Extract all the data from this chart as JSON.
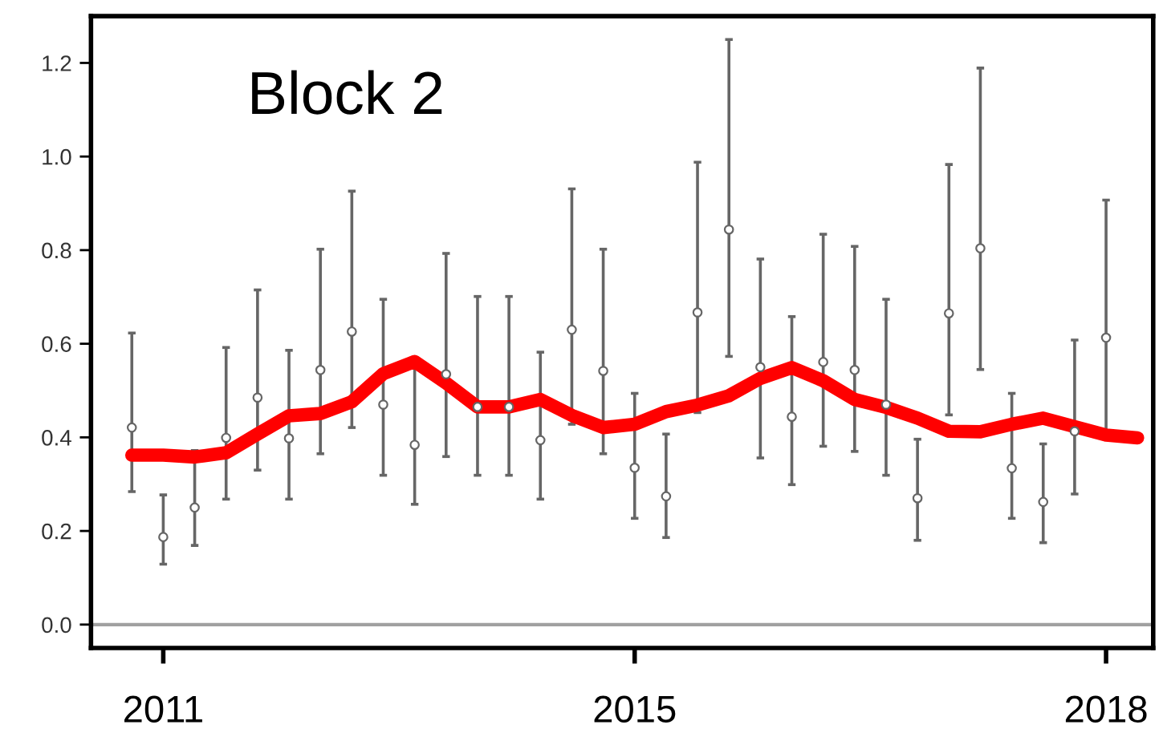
{
  "chart_data": {
    "type": "scatter",
    "title": "Block 2",
    "categories": [
      null,
      "2011",
      null,
      null,
      null,
      null,
      null,
      null,
      null,
      null,
      null,
      null,
      null,
      null,
      null,
      null,
      "2015",
      null,
      null,
      null,
      null,
      null,
      null,
      null,
      null,
      null,
      null,
      null,
      null,
      null,
      null,
      "2018",
      null
    ],
    "ylim": [
      -0.05,
      1.3
    ],
    "yticks": [
      {
        "value": 0,
        "label": "0.0"
      },
      0.2,
      0.4,
      0.6,
      0.8,
      {
        "value": 1,
        "label": "1.0"
      },
      1.2
    ],
    "grid": false,
    "legend": false,
    "ref_lines": [
      {
        "axis": "y",
        "value": 0,
        "color": "#a0a0a0",
        "line_style": "solid"
      }
    ],
    "series": [
      {
        "color": "#666666",
        "marker": "circle",
        "values": [
          0.421,
          0.187,
          0.25,
          0.399,
          0.485,
          0.398,
          0.544,
          0.626,
          0.47,
          0.384,
          0.535,
          0.465,
          0.465,
          0.394,
          0.63,
          0.542,
          0.335,
          0.274,
          0.667,
          0.844,
          0.55,
          0.444,
          0.561,
          0.544,
          0.47,
          0.27,
          0.665,
          0.804,
          0.334,
          0.262,
          0.413,
          0.613,
          null
        ],
        "errors": [
          [
            0.284,
            0.623
          ],
          [
            0.129,
            0.277
          ],
          [
            0.169,
            0.372
          ],
          [
            0.268,
            0.592
          ],
          [
            0.33,
            0.715
          ],
          [
            0.268,
            0.586
          ],
          [
            0.365,
            0.802
          ],
          [
            0.421,
            0.926
          ],
          [
            0.319,
            0.695
          ],
          [
            0.257,
            0.55
          ],
          [
            0.359,
            0.793
          ],
          [
            0.319,
            0.701
          ],
          [
            0.319,
            0.701
          ],
          [
            0.268,
            0.582
          ],
          [
            0.428,
            0.931
          ],
          [
            0.365,
            0.802
          ],
          [
            0.227,
            0.494
          ],
          [
            0.186,
            0.407
          ],
          [
            0.453,
            0.988
          ],
          [
            0.573,
            1.25
          ],
          [
            0.356,
            0.781
          ],
          [
            0.299,
            0.658
          ],
          [
            0.381,
            0.834
          ],
          [
            0.37,
            0.808
          ],
          [
            0.319,
            0.695
          ],
          [
            0.18,
            0.396
          ],
          [
            0.448,
            0.983
          ],
          [
            0.545,
            1.189
          ],
          [
            0.227,
            0.494
          ],
          [
            0.175,
            0.386
          ],
          [
            0.279,
            0.608
          ],
          [
            0.41,
            0.907
          ],
          null
        ]
      },
      {
        "type": "line",
        "color": "#ff0000",
        "marker": "none",
        "line_style": "solid",
        "values": [
          0.362,
          0.362,
          0.358,
          0.367,
          0.407,
          0.446,
          0.451,
          0.476,
          0.536,
          0.562,
          0.516,
          0.465,
          0.465,
          0.481,
          0.447,
          0.421,
          0.428,
          0.455,
          0.469,
          0.489,
          0.526,
          0.549,
          0.521,
          0.481,
          0.464,
          0.441,
          0.413,
          0.412,
          0.428,
          0.441,
          0.423,
          0.405,
          0.399
        ]
      }
    ]
  }
}
